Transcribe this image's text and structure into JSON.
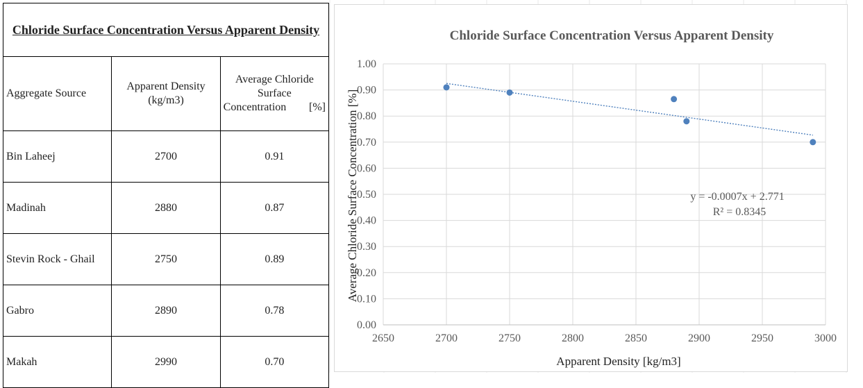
{
  "table": {
    "title": "Chloride Surface Concentration Versus Apparent Density",
    "headers": {
      "source": "Aggregate Source",
      "density": "Apparent Density (kg/m3)",
      "conc_main": "Average Chloride Surface",
      "conc_word": "Concentration",
      "conc_unit": "[%]"
    },
    "rows": [
      {
        "source": "Bin Laheej",
        "density": "2700",
        "conc": "0.91"
      },
      {
        "source": "Madinah",
        "density": "2880",
        "conc": "0.87"
      },
      {
        "source": "Stevin Rock - Ghail",
        "density": "2750",
        "conc": "0.89"
      },
      {
        "source": "Gabro",
        "density": "2890",
        "conc": "0.78"
      },
      {
        "source": "Makah",
        "density": "2990",
        "conc": "0.70"
      }
    ]
  },
  "chart_data": {
    "type": "scatter",
    "title": "Chloride Surface Concentration Versus Apparent Density",
    "xlabel": "Apparent Density [kg/m3]",
    "ylabel": "Average Chloride Surface  Concentration   [%]",
    "xlim": [
      2650,
      3000
    ],
    "ylim": [
      0.0,
      1.0
    ],
    "x_ticks": [
      "2650",
      "2700",
      "2750",
      "2800",
      "2850",
      "2900",
      "2950",
      "3000"
    ],
    "y_ticks": [
      "0.00",
      "0.10",
      "0.20",
      "0.30",
      "0.40",
      "0.50",
      "0.60",
      "0.70",
      "0.80",
      "0.90",
      "1.00"
    ],
    "grid": true,
    "series": [
      {
        "points": [
          {
            "x": 2700,
            "y": 0.91
          },
          {
            "x": 2750,
            "y": 0.89
          },
          {
            "x": 2880,
            "y": 0.865
          },
          {
            "x": 2890,
            "y": 0.78
          },
          {
            "x": 2990,
            "y": 0.7
          }
        ],
        "color": "#4f81bd"
      }
    ],
    "trendline": {
      "type": "linear",
      "x_range": [
        2700,
        2990
      ],
      "y_range": [
        0.925,
        0.727
      ],
      "equation": "y = -0.0007x + 2.771",
      "r_squared": "R² = 0.8345",
      "color": "#4f81bd"
    }
  }
}
